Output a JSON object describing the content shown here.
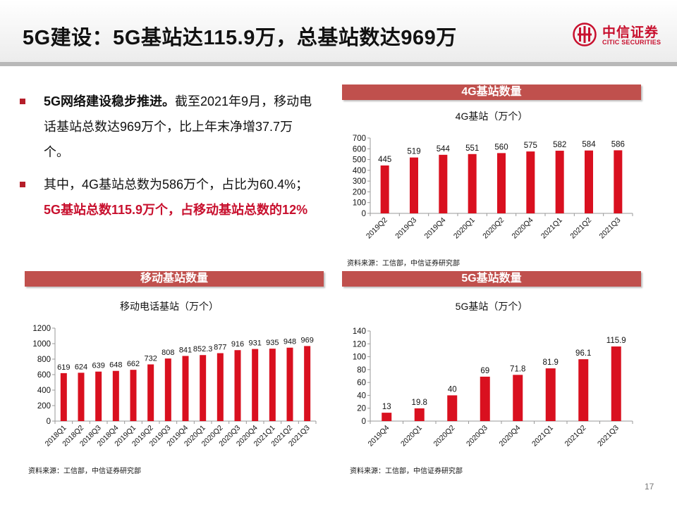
{
  "slide": {
    "title": "5G建设：5G基站达115.9万，总基站数达969万",
    "page_number": "17"
  },
  "logo": {
    "cn": "中信证券",
    "en": "CITIC SECURITIES",
    "brand_color": "#c8102e"
  },
  "bullets": [
    {
      "parts": [
        {
          "text": "5G网络建设稳步推进。",
          "style": "bold"
        },
        {
          "text": "截至2021年9月，移动电话基站总数达969万个，比上年末净增37.7万个。",
          "style": "normal"
        }
      ]
    },
    {
      "parts": [
        {
          "text": "其中，4G基站总数为586万个，占比为60.4%；",
          "style": "normal"
        },
        {
          "text": "5G基站总数115.9万个，占移动基站总数的12%",
          "style": "red"
        }
      ]
    }
  ],
  "panels": {
    "mobile": {
      "header": "移动基站数量",
      "source": "资料来源：工信部，中信证券研究部"
    },
    "g4": {
      "header": "4G基站数量",
      "source": "资料来源：工信部，中信证券研究部"
    },
    "g5": {
      "header": "5G基站数量",
      "source": "资料来源：工信部，中信证券研究部"
    }
  },
  "colors": {
    "bar": "#d9101f",
    "panel_header": "#c0504d",
    "bullet": "#b51e2a"
  },
  "chart_data": [
    {
      "id": "mobile",
      "type": "bar",
      "title": "移动电话基站（万个）",
      "categories": [
        "2018Q1",
        "2018Q2",
        "2018Q3",
        "2018Q4",
        "2019Q1",
        "2019Q2",
        "2019Q3",
        "2019Q4",
        "2020Q1",
        "2020Q2",
        "2020Q3",
        "2020Q4",
        "2021Q1",
        "2021Q2",
        "2021Q3"
      ],
      "values": [
        619,
        624,
        639,
        648,
        662,
        732,
        808,
        841,
        852.3,
        877,
        916,
        931,
        935,
        948,
        969
      ],
      "value_labels": [
        "619",
        "624",
        "639",
        "648",
        "662",
        "732",
        "808",
        "841",
        "852.3",
        "877",
        "916",
        "931",
        "935",
        "948",
        "969"
      ],
      "ylim": [
        0,
        1200
      ],
      "yticks": [
        0,
        200,
        400,
        600,
        800,
        1000,
        1200
      ],
      "grid": false,
      "legend": "none"
    },
    {
      "id": "g4",
      "type": "bar",
      "title": "4G基站（万个）",
      "categories": [
        "2019Q2",
        "2019Q3",
        "2019Q4",
        "2020Q1",
        "2020Q2",
        "2020Q4",
        "2021Q1",
        "2021Q2",
        "2021Q3"
      ],
      "values": [
        445,
        519,
        544,
        551,
        560,
        575,
        582,
        584,
        586
      ],
      "value_labels": [
        "445",
        "519",
        "544",
        "551",
        "560",
        "575",
        "582",
        "584",
        "586"
      ],
      "ylim": [
        0,
        700
      ],
      "yticks": [
        0,
        100,
        200,
        300,
        400,
        500,
        600,
        700
      ],
      "grid": false,
      "legend": "none"
    },
    {
      "id": "g5",
      "type": "bar",
      "title": "5G基站（万个）",
      "categories": [
        "2019Q4",
        "2020Q1",
        "2020Q2",
        "2020Q3",
        "2020Q4",
        "2021Q1",
        "2021Q2",
        "2021Q3"
      ],
      "values": [
        13,
        19.8,
        40,
        69,
        71.8,
        81.9,
        96.1,
        115.9
      ],
      "value_labels": [
        "13",
        "19.8",
        "40",
        "69",
        "71.8",
        "81.9",
        "96.1",
        "115.9"
      ],
      "ylim": [
        0,
        140
      ],
      "yticks": [
        0,
        20,
        40,
        60,
        80,
        100,
        120,
        140
      ],
      "grid": false,
      "legend": "none"
    }
  ]
}
